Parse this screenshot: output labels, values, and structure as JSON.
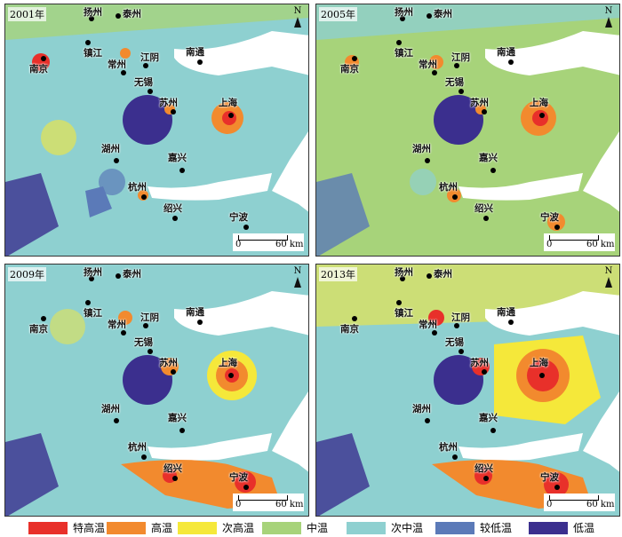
{
  "panels": [
    {
      "year": "2001年"
    },
    {
      "year": "2005年"
    },
    {
      "year": "2009年"
    },
    {
      "year": "2013年"
    }
  ],
  "north_label": "N",
  "scale": {
    "zero": "0",
    "distance": "60 km"
  },
  "cities": {
    "yangzhou": "扬州",
    "taizhou": "泰州",
    "zhenjiang": "镇江",
    "nanjing": "南京",
    "changzhou": "常州",
    "jiangyin": "江阴",
    "nantong": "南通",
    "wuxi": "无锡",
    "suzhou": "苏州",
    "shanghai": "上海",
    "huzhou": "湖州",
    "jiaxing": "嘉兴",
    "hangzhou": "杭州",
    "shaoxing": "绍兴",
    "ningbo": "宁波"
  },
  "legend": [
    {
      "label": "特高温",
      "color": "#e8302a"
    },
    {
      "label": "高温",
      "color": "#f28a2e"
    },
    {
      "label": "次高温",
      "color": "#f5e83a"
    },
    {
      "label": "中温",
      "color": "#a7d37a"
    },
    {
      "label": "次中温",
      "color": "#8ed0d0"
    },
    {
      "label": "较低温",
      "color": "#5b7ab8"
    },
    {
      "label": "低温",
      "color": "#3b2f8e"
    }
  ]
}
